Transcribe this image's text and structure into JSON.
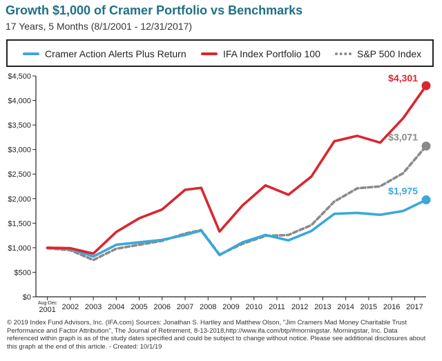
{
  "header": {
    "title": "Growth $1,000 of Cramer Portfolio vs Benchmarks",
    "subtitle": "17 Years, 5 Months (8/1/2001 - 12/31/2017)"
  },
  "footer": {
    "text": "© 2019 Index Fund Advisors, Inc. (IFA.com)  Sources: Jonathan S. Hartley and Matthew Olson, \"Jim Cramers Mad Money Charitable Trust Performance and Factor Attribution\", The Journal of Retirement, 8-13-2018,http://www.ifa.com/btp/#morningstar. Morningstar, Inc. Data referenced within graph is as of the study dates specified and could be subject to change without notice. Please see additional disclosures about this graph at the end of this article. - Created: 10/1/19"
  },
  "chart_data": {
    "type": "line",
    "title": "Growth $1,000 of Cramer Portfolio vs Benchmarks",
    "subtitle": "17 Years, 5 Months (8/1/2001 - 12/31/2017)",
    "xlabel": "",
    "ylabel": "",
    "ylim": [
      0,
      4500
    ],
    "yticks": [
      0,
      500,
      1000,
      1500,
      2000,
      2500,
      3000,
      3500,
      4000,
      4500
    ],
    "ytick_labels": [
      "$0",
      "$500",
      "$1,000",
      "$1,500",
      "$2,000",
      "$2,500",
      "$3,000",
      "$3,500",
      "$4,000",
      "$4,500"
    ],
    "x": [
      "Aug-Dec 2001",
      "2002",
      "2003",
      "2004",
      "2005",
      "2006",
      "2007",
      "2008",
      "2009",
      "2010",
      "2011",
      "2012",
      "2013",
      "2014",
      "2015",
      "2016",
      "2017"
    ],
    "xtick_labels": [
      {
        "top": "Aug-Dec",
        "bottom": "2001"
      },
      {
        "top": "",
        "bottom": "2002"
      },
      {
        "top": "",
        "bottom": "2003"
      },
      {
        "top": "",
        "bottom": "2004"
      },
      {
        "top": "",
        "bottom": "2005"
      },
      {
        "top": "",
        "bottom": "2006"
      },
      {
        "top": "",
        "bottom": "2007"
      },
      {
        "top": "",
        "bottom": "2008"
      },
      {
        "top": "",
        "bottom": "2009"
      },
      {
        "top": "",
        "bottom": "2010"
      },
      {
        "top": "",
        "bottom": "2011"
      },
      {
        "top": "",
        "bottom": "2012"
      },
      {
        "top": "",
        "bottom": "2013"
      },
      {
        "top": "",
        "bottom": "2014"
      },
      {
        "top": "",
        "bottom": "2015"
      },
      {
        "top": "",
        "bottom": "2016"
      },
      {
        "top": "",
        "bottom": "2017"
      }
    ],
    "series": [
      {
        "name": "Cramer Action Alerts Plus Return",
        "color": "#3aa8d8",
        "style": "solid",
        "x": [
          0,
          1,
          2,
          3,
          4,
          5,
          6,
          6.7,
          7.5,
          8.5,
          9.5,
          10.5,
          11.5,
          12.5,
          13.5,
          14.5,
          15.5,
          16.5
        ],
        "values": [
          1000,
          980,
          820,
          1060,
          1110,
          1160,
          1260,
          1350,
          850,
          1110,
          1260,
          1150,
          1340,
          1690,
          1710,
          1670,
          1750,
          1975
        ],
        "end_label": "$1,975"
      },
      {
        "name": "IFA Index Portfolio 100",
        "color": "#d9262f",
        "style": "solid",
        "x": [
          0,
          1,
          2,
          3,
          4,
          5,
          6,
          6.7,
          7.5,
          8.5,
          9.5,
          10.5,
          11.5,
          12.5,
          13.5,
          14.5,
          15.5,
          16.5
        ],
        "values": [
          1000,
          990,
          880,
          1320,
          1600,
          1780,
          2180,
          2220,
          1330,
          1860,
          2270,
          2080,
          2450,
          3170,
          3280,
          3140,
          3640,
          4301
        ],
        "end_label": "$4,301"
      },
      {
        "name": "S&P 500 Index",
        "color": "#8a8a8a",
        "style": "dashed",
        "x": [
          0,
          1,
          2,
          3,
          4,
          5,
          6,
          6.7,
          7.5,
          8.5,
          9.5,
          10.5,
          11.5,
          12.5,
          13.5,
          14.5,
          15.5,
          16.5
        ],
        "values": [
          990,
          950,
          750,
          980,
          1060,
          1140,
          1290,
          1360,
          860,
          1080,
          1240,
          1260,
          1460,
          1940,
          2210,
          2250,
          2520,
          3071
        ],
        "end_label": "$3,071"
      }
    ],
    "grid": false,
    "legend_position": "top"
  }
}
